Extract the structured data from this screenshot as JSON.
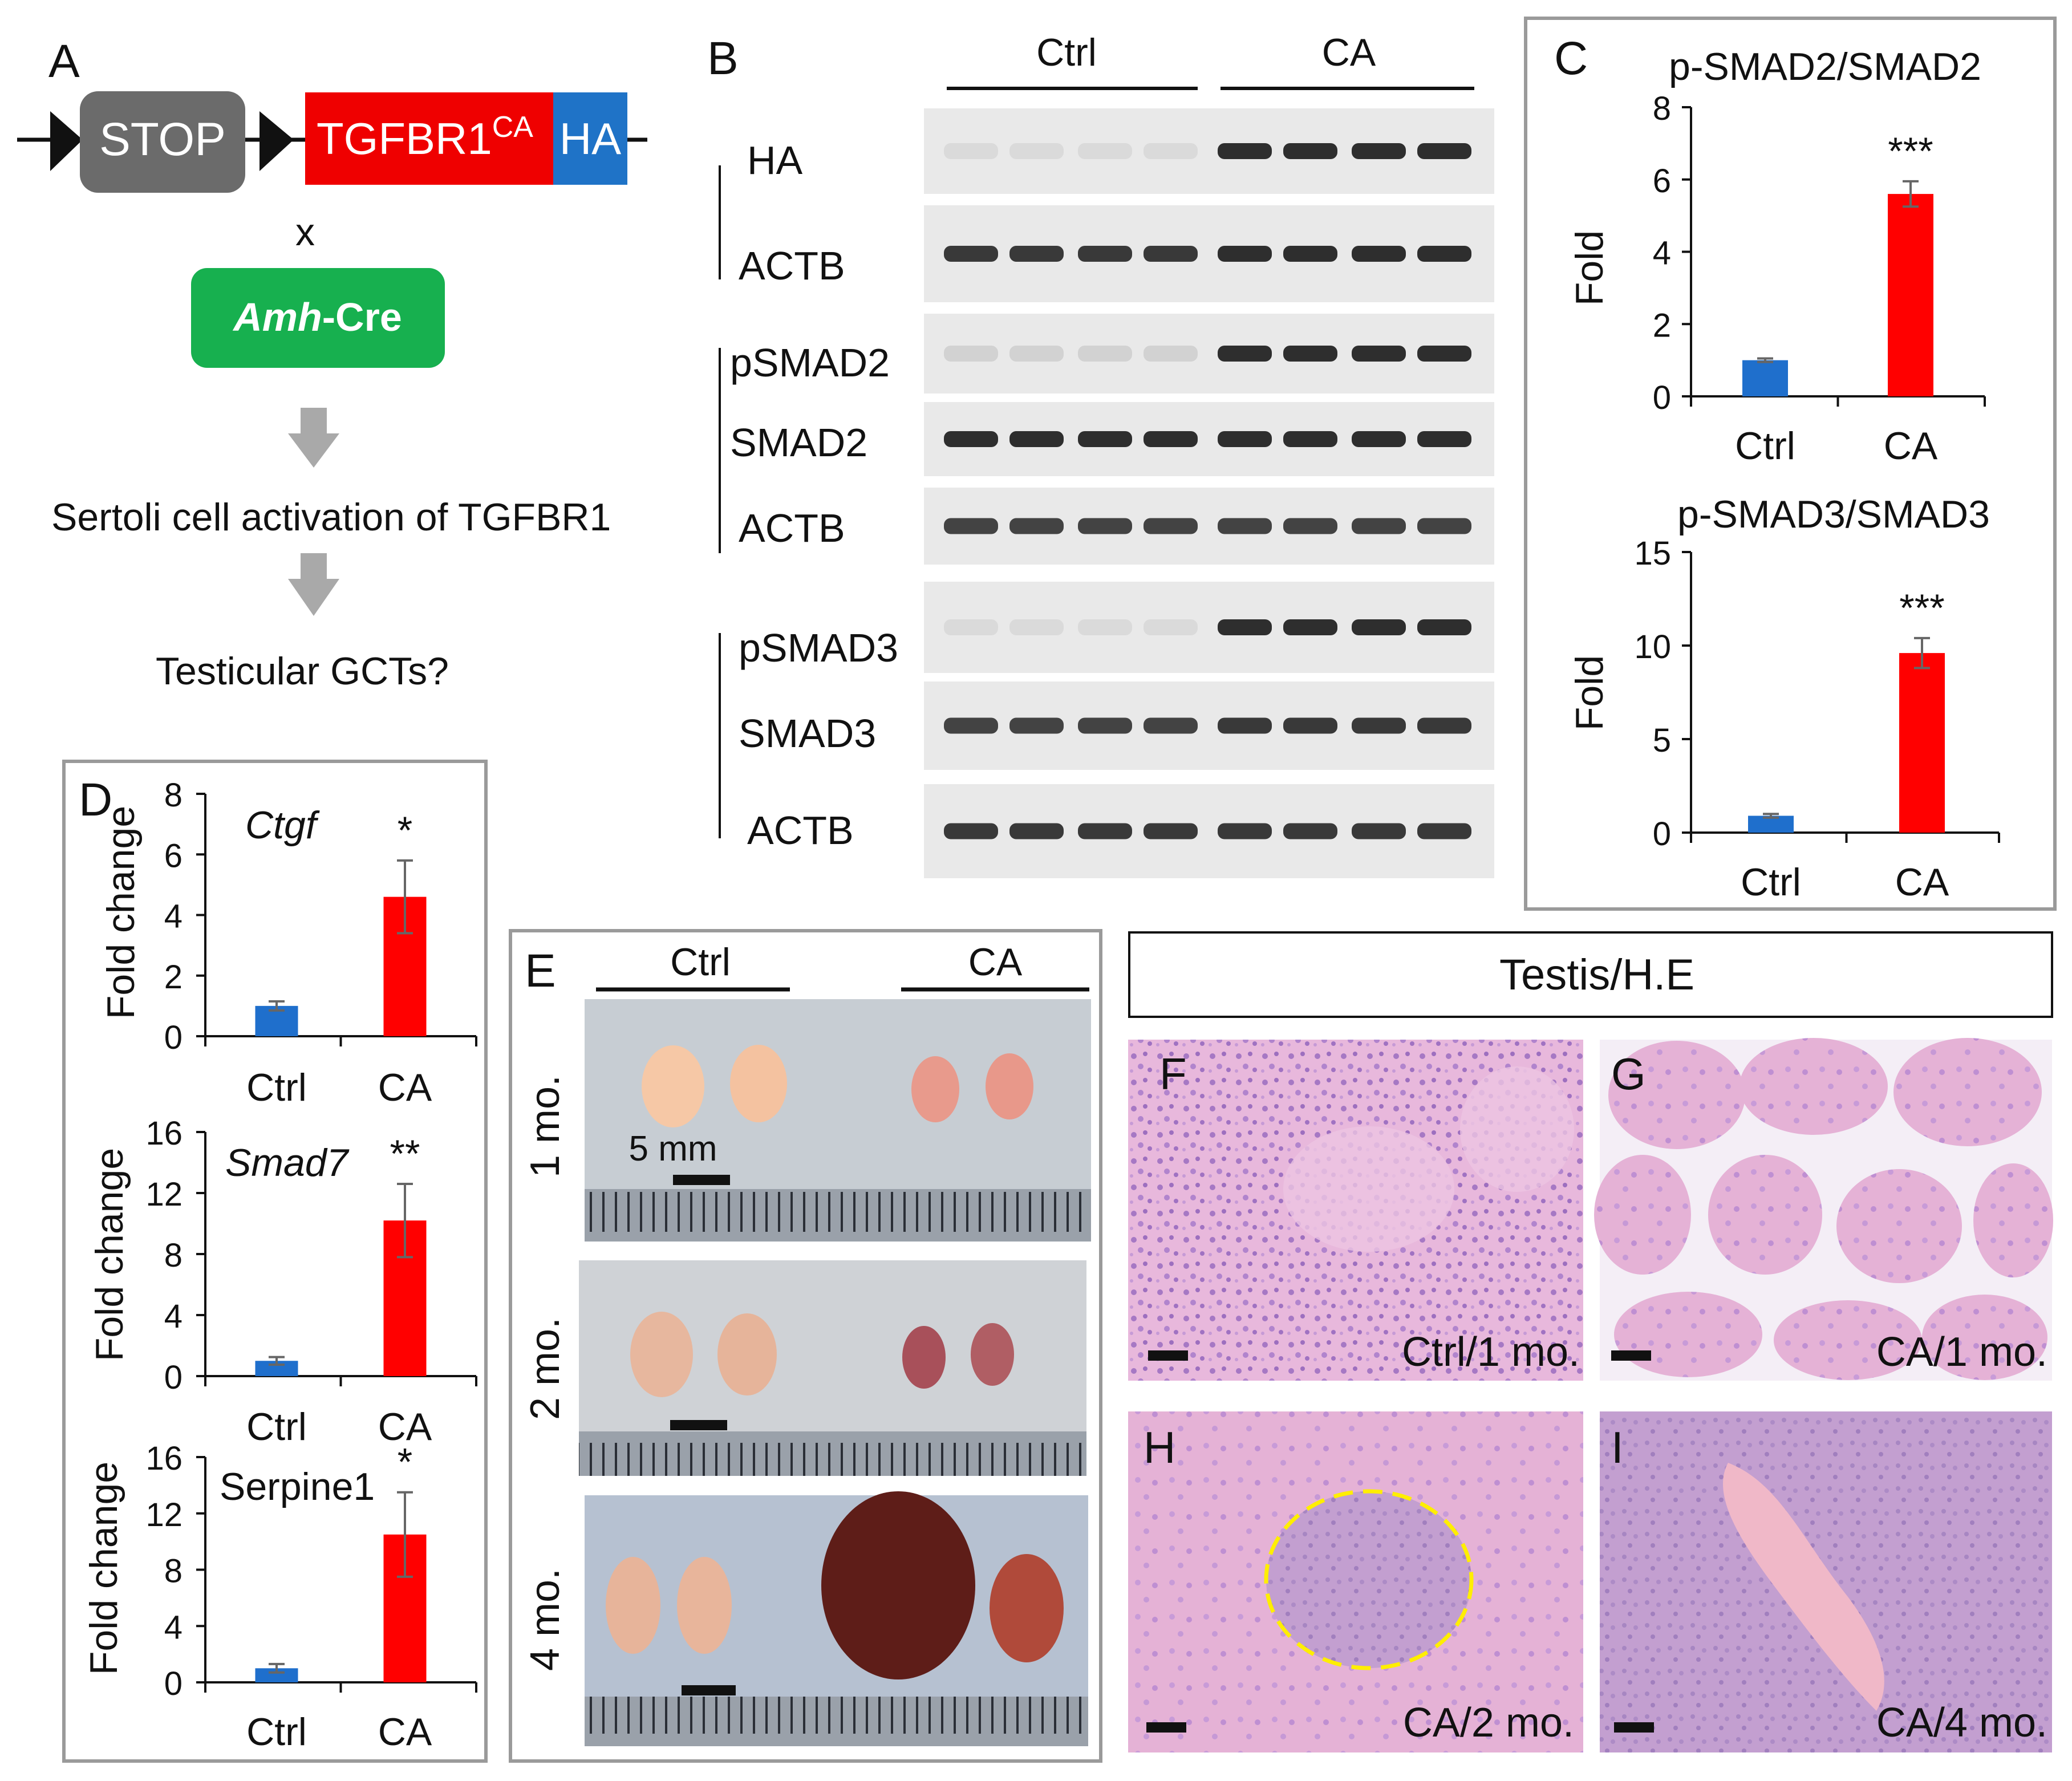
{
  "panel_letters": {
    "A": "A",
    "B": "B",
    "C": "C",
    "D": "D",
    "E": "E",
    "F": "F",
    "G": "G",
    "H": "H",
    "I": "I"
  },
  "colors": {
    "ctrl": "#1f6fcc",
    "ca": "#ff0000",
    "he_pink": "#e7b3d8",
    "he_purple": "#b98bc9",
    "ruler_bg": "#9fa5ad",
    "construct_red": "#ef0000",
    "construct_blue": "#1f73c7",
    "construct_gray": "#6b6b6b",
    "cre_green": "#17b04f",
    "arrow_gray": "#a9a9a9",
    "ellipse_dash": "#ffee00"
  },
  "panel_A": {
    "stop": "STOP",
    "gene": "TGFBR1",
    "gene_sup": "CA",
    "tag": "HA",
    "cross": "x",
    "cre_italic": "Amh",
    "cre_rest": "-Cre",
    "step1": "Sertoli cell activation of TGFBR1",
    "step2": "Testicular GCTs?"
  },
  "panel_B": {
    "groups": [
      "Ctrl",
      "CA"
    ],
    "rows": [
      "HA",
      "ACTB",
      "pSMAD2",
      "SMAD2",
      "ACTB",
      "pSMAD3",
      "SMAD3",
      "ACTB"
    ]
  },
  "panel_E": {
    "groups": [
      "Ctrl",
      "CA"
    ],
    "ages": [
      "1 mo.",
      "2 mo.",
      "4 mo."
    ],
    "scale": "5 mm"
  },
  "panel_histology": {
    "header": "Testis/H.E",
    "captions": [
      "Ctrl/1 mo.",
      "CA/1 mo.",
      "CA/2 mo.",
      "CA/4 mo."
    ]
  },
  "chart_data": [
    {
      "id": "C1",
      "type": "bar",
      "title": "p-SMAD2/SMAD2",
      "ylabel": "Fold",
      "categories": [
        "Ctrl",
        "CA"
      ],
      "values": [
        1.0,
        5.6
      ],
      "errors": [
        0.05,
        0.35
      ],
      "ylim": [
        0,
        8
      ],
      "yticks": [
        0,
        2,
        4,
        6,
        8
      ],
      "significance": [
        "",
        "***"
      ]
    },
    {
      "id": "C2",
      "type": "bar",
      "title": "p-SMAD3/SMAD3",
      "ylabel": "Fold",
      "categories": [
        "Ctrl",
        "CA"
      ],
      "values": [
        0.9,
        9.6
      ],
      "errors": [
        0.1,
        0.8
      ],
      "ylim": [
        0,
        15
      ],
      "yticks": [
        0,
        5,
        10,
        15
      ],
      "significance": [
        "",
        "***"
      ]
    },
    {
      "id": "D1",
      "type": "bar",
      "title": "Ctgf",
      "title_italic": true,
      "ylabel": "Fold change",
      "categories": [
        "Ctrl",
        "CA"
      ],
      "values": [
        1.0,
        4.6
      ],
      "errors": [
        0.15,
        1.2
      ],
      "ylim": [
        0,
        8
      ],
      "yticks": [
        0,
        2,
        4,
        6,
        8
      ],
      "significance": [
        "",
        "*"
      ]
    },
    {
      "id": "D2",
      "type": "bar",
      "title": "Smad7",
      "title_italic": true,
      "ylabel": "Fold change",
      "categories": [
        "Ctrl",
        "CA"
      ],
      "values": [
        1.0,
        10.2
      ],
      "errors": [
        0.25,
        2.4
      ],
      "ylim": [
        0,
        16
      ],
      "yticks": [
        0,
        4,
        8,
        12,
        16
      ],
      "significance": [
        "",
        "**"
      ]
    },
    {
      "id": "D3",
      "type": "bar",
      "title": "Serpine1",
      "title_italic": false,
      "ylabel": "Fold change",
      "categories": [
        "Ctrl",
        "CA"
      ],
      "values": [
        1.0,
        10.5
      ],
      "errors": [
        0.3,
        3.0
      ],
      "ylim": [
        0,
        16
      ],
      "yticks": [
        0,
        4,
        8,
        12,
        16
      ],
      "significance": [
        "",
        "*"
      ]
    }
  ]
}
